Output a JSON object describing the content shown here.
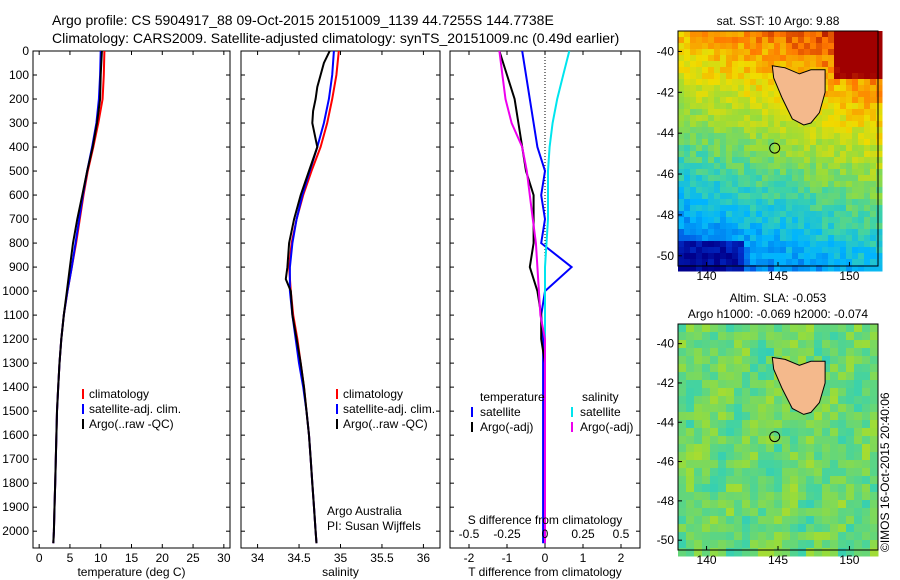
{
  "header": {
    "line1": "Argo profile: CS 5904917_88 09-Oct-2015 20151009_1139 44.7255S 144.7738E",
    "line2": "Climatology: CARS2009. Satellite-adjusted climatology: synTS_20151009.nc (0.49d earlier)"
  },
  "colors": {
    "climatology": "#ff0000",
    "satellite": "#0000ff",
    "argo": "#000000",
    "salinity_sat": "#00e5ee",
    "salinity_argo": "#ee00ee"
  },
  "depth_ticks": [
    "0",
    "100",
    "200",
    "300",
    "400",
    "500",
    "600",
    "700",
    "800",
    "900",
    "1000",
    "1100",
    "1200",
    "1300",
    "1400",
    "1500",
    "1600",
    "1700",
    "1800",
    "1900",
    "2000"
  ],
  "chart_data": [
    {
      "type": "line",
      "xlabel": "temperature (deg C)",
      "xlim": [
        -1,
        31
      ],
      "ylim": [
        2070,
        0
      ],
      "xticks": [
        "0",
        "5",
        "10",
        "15",
        "20",
        "25",
        "30"
      ],
      "legend": [
        "climatology",
        "satellite-adj. clim.",
        "Argo(..raw -QC)"
      ],
      "series": [
        {
          "name": "climatology",
          "depth": [
            0,
            100,
            200,
            300,
            400,
            500,
            600,
            700,
            800,
            900,
            1000,
            1100,
            1200,
            1300,
            1400,
            1500,
            1600,
            1700,
            1800,
            1900,
            2000,
            2050
          ],
          "values": [
            10.6,
            10.5,
            10.3,
            9.6,
            8.8,
            7.9,
            7.2,
            6.6,
            6.0,
            5.3,
            4.6,
            4.0,
            3.6,
            3.3,
            3.1,
            2.9,
            2.8,
            2.7,
            2.6,
            2.5,
            2.4,
            2.3
          ]
        },
        {
          "name": "satellite-adj. clim.",
          "depth": [
            0,
            100,
            200,
            300,
            400,
            500,
            600,
            700,
            800,
            900,
            1000,
            1100,
            1200,
            1300,
            1400,
            1500,
            1600,
            1700,
            1800,
            1900,
            2000,
            2050
          ],
          "values": [
            10.0,
            9.9,
            9.7,
            9.3,
            8.6,
            7.8,
            7.1,
            6.5,
            5.9,
            5.3,
            4.6,
            4.0,
            3.6,
            3.3,
            3.1,
            2.9,
            2.8,
            2.7,
            2.6,
            2.5,
            2.4,
            2.3
          ]
        },
        {
          "name": "Argo(..raw -QC)",
          "depth": [
            0,
            100,
            200,
            300,
            400,
            500,
            600,
            700,
            800,
            900,
            1000,
            1100,
            1200,
            1300,
            1400,
            1500,
            1600,
            1700,
            1800,
            1900,
            2000,
            2050
          ],
          "values": [
            10.2,
            10.0,
            9.9,
            9.4,
            8.7,
            7.8,
            7.0,
            6.2,
            5.5,
            5.0,
            4.5,
            4.0,
            3.6,
            3.3,
            3.1,
            2.9,
            2.8,
            2.7,
            2.6,
            2.5,
            2.4,
            2.3
          ]
        }
      ]
    },
    {
      "type": "line",
      "xlabel": "salinity",
      "xlim": [
        33.8,
        36.2
      ],
      "ylim": [
        2070,
        0
      ],
      "xticks": [
        "34",
        "34.5",
        "35",
        "35.5",
        "36"
      ],
      "legend": [
        "climatology",
        "satellite-adj. clim.",
        "Argo(..raw -QC)"
      ],
      "annotation": [
        "Argo Australia",
        "PI: Susan Wijffels"
      ],
      "series": [
        {
          "name": "climatology",
          "depth": [
            0,
            100,
            200,
            300,
            400,
            500,
            600,
            700,
            800,
            900,
            1000,
            1100,
            1200,
            1300,
            1400,
            1500,
            1600,
            1700,
            1800,
            1900,
            2000,
            2050
          ],
          "values": [
            34.98,
            34.95,
            34.9,
            34.84,
            34.76,
            34.65,
            34.55,
            34.47,
            34.41,
            34.38,
            34.4,
            34.43,
            34.48,
            34.52,
            34.56,
            34.59,
            34.62,
            34.64,
            34.66,
            34.68,
            34.7,
            34.71
          ]
        },
        {
          "name": "satellite-adj. clim.",
          "depth": [
            0,
            100,
            200,
            300,
            400,
            500,
            600,
            700,
            800,
            900,
            1000,
            1100,
            1200,
            1300,
            1400,
            1500,
            1600,
            1700,
            1800,
            1900,
            2000,
            2050
          ],
          "values": [
            34.92,
            34.9,
            34.86,
            34.8,
            34.72,
            34.63,
            34.54,
            34.47,
            34.42,
            34.39,
            34.39,
            34.42,
            34.46,
            34.5,
            34.55,
            34.59,
            34.62,
            34.64,
            34.66,
            34.68,
            34.7,
            34.71
          ]
        },
        {
          "name": "Argo(..raw -QC)",
          "depth": [
            0,
            50,
            100,
            150,
            200,
            250,
            300,
            400,
            500,
            600,
            700,
            800,
            900,
            950,
            1000,
            1100,
            1200,
            1300,
            1400,
            1500,
            1600,
            1700,
            1800,
            1900,
            2000,
            2050
          ],
          "values": [
            34.87,
            34.8,
            34.76,
            34.72,
            34.7,
            34.67,
            34.66,
            34.72,
            34.62,
            34.52,
            34.44,
            34.38,
            34.36,
            34.34,
            34.4,
            34.42,
            34.47,
            34.52,
            34.56,
            34.59,
            34.62,
            34.64,
            34.66,
            34.68,
            34.7,
            34.71
          ]
        }
      ]
    },
    {
      "type": "line",
      "xlabel": "T difference from climatology",
      "xlabel2": "S difference from climatology",
      "xlim": [
        -2.5,
        2.5
      ],
      "ylim": [
        2070,
        0
      ],
      "xticks": [
        "-2",
        "-1",
        "0",
        "1",
        "2"
      ],
      "xticks2": [
        "-0.5",
        "-0.25",
        "0",
        "0.25",
        "0.5"
      ],
      "legend_groups": [
        {
          "title": "temperature",
          "items": [
            "satellite",
            "Argo(-adj)"
          ]
        },
        {
          "title": "salinity",
          "items": [
            "satellite",
            "Argo(-adj)"
          ]
        }
      ],
      "series": [
        {
          "name": "temperature satellite",
          "depth": [
            0,
            100,
            200,
            300,
            400,
            500,
            600,
            700,
            800,
            900,
            1000,
            1100,
            1200,
            1300,
            1500,
            2000,
            2050
          ],
          "values": [
            -0.6,
            -0.5,
            -0.4,
            -0.3,
            -0.2,
            0.0,
            -0.1,
            0.0,
            -0.1,
            0.7,
            0.0,
            -0.1,
            -0.05,
            -0.05,
            -0.05,
            -0.05,
            -0.05
          ]
        },
        {
          "name": "temperature Argo(-adj)",
          "depth": [
            0,
            50,
            100,
            200,
            300,
            400,
            500,
            600,
            700,
            800,
            900,
            1000,
            1100,
            1200,
            1300,
            1500,
            1700,
            2000,
            2050
          ],
          "values": [
            -1.2,
            -1.1,
            -1.0,
            -0.8,
            -0.7,
            -0.6,
            -0.5,
            -0.3,
            -0.3,
            -0.3,
            -0.4,
            -0.2,
            -0.1,
            -0.1,
            0.0,
            0.0,
            0.0,
            0.0,
            0.0
          ]
        },
        {
          "name": "salinity satellite",
          "depth": [
            0,
            100,
            200,
            300,
            400,
            500,
            600,
            700,
            800,
            900,
            1000,
            1100,
            1200,
            1500,
            2000,
            2050
          ],
          "values": [
            0.16,
            0.12,
            0.08,
            0.05,
            0.03,
            0.02,
            0.02,
            0.02,
            0.01,
            0.0,
            0.0,
            0.0,
            0.0,
            0.0,
            0.0,
            0.0
          ]
        },
        {
          "name": "salinity Argo(-adj)",
          "depth": [
            0,
            100,
            200,
            300,
            400,
            500,
            600,
            700,
            800,
            900,
            1000,
            1100,
            1200,
            1500,
            2000,
            2050
          ],
          "values": [
            -0.3,
            -0.28,
            -0.26,
            -0.22,
            -0.15,
            -0.12,
            -0.1,
            -0.08,
            -0.06,
            -0.05,
            -0.04,
            -0.03,
            0.0,
            0.0,
            0.0,
            0.0
          ]
        }
      ]
    },
    {
      "type": "heatmap",
      "title": "sat. SST: 10 Argo: 9.88",
      "xlim": [
        138,
        152
      ],
      "ylim": [
        -50.5,
        -39
      ],
      "xticks": [
        "140",
        "145",
        "150"
      ],
      "yticks": [
        "-40",
        "-42",
        "-44",
        "-46",
        "-48",
        "-50"
      ],
      "marker": {
        "lon": 144.77,
        "lat": -44.73
      }
    },
    {
      "type": "heatmap",
      "title": "Altim. SLA: -0.053",
      "subtitle": "Argo h1000: -0.069 h2000: -0.074",
      "xlim": [
        138,
        152
      ],
      "ylim": [
        -50.5,
        -39
      ],
      "xticks": [
        "140",
        "145",
        "150"
      ],
      "yticks": [
        "-40",
        "-42",
        "-44",
        "-46",
        "-48",
        "-50"
      ],
      "marker": {
        "lon": 144.77,
        "lat": -44.73
      }
    }
  ],
  "footer": {
    "stamp": "©IMOS 16-Oct-2015 20:40:06"
  }
}
